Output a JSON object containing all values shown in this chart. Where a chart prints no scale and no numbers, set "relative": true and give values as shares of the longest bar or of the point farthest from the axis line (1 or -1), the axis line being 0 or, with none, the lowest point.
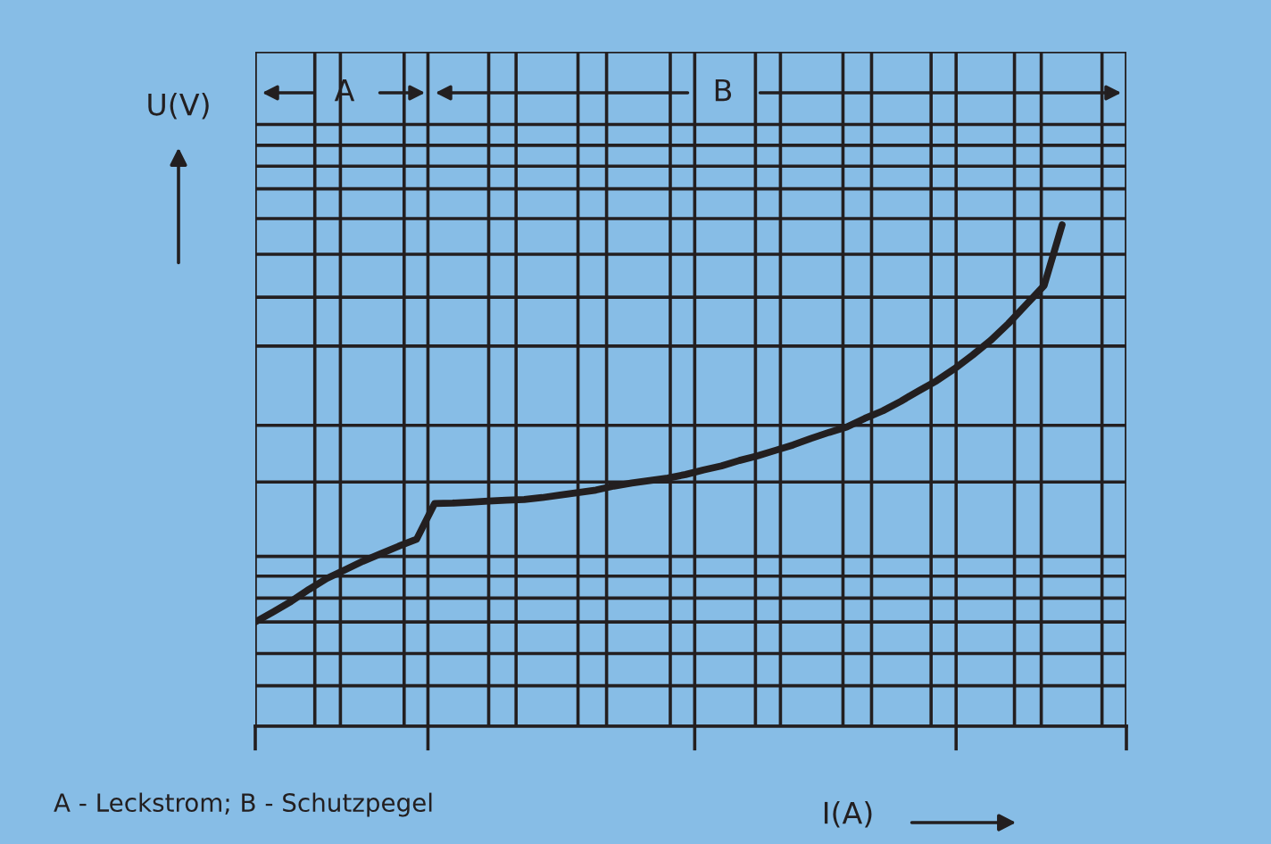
{
  "chart_data": {
    "type": "line",
    "relative": true,
    "xlabel": "I(A)",
    "ylabel": "U(V)",
    "categories": [
      null,
      null,
      null,
      null,
      null,
      null,
      null,
      null,
      null,
      null,
      null,
      null,
      null,
      null,
      null,
      null,
      null,
      null,
      null,
      null,
      null,
      null,
      null,
      null,
      null,
      null,
      null,
      null,
      null,
      null,
      null,
      null,
      null,
      null,
      null,
      null,
      null,
      null,
      null,
      null,
      null,
      null,
      null,
      null,
      null,
      null
    ],
    "series": [
      {
        "color": "#231f20",
        "values": [
          0.208,
          0.228,
          0.249,
          0.273,
          0.295,
          0.312,
          0.329,
          0.344,
          0.359,
          0.373,
          0.444,
          0.445,
          0.447,
          0.449,
          0.451,
          0.452,
          0.456,
          0.461,
          0.466,
          0.471,
          0.479,
          0.485,
          0.49,
          0.495,
          0.502,
          0.511,
          0.519,
          0.53,
          0.539,
          0.55,
          0.561,
          0.574,
          0.586,
          0.597,
          0.614,
          0.629,
          0.648,
          0.669,
          0.689,
          0.713,
          0.74,
          0.769,
          0.803,
          0.841,
          0.879,
          1.0
        ]
      }
    ],
    "annotations": [
      "A",
      "B",
      "A - Leckstrom; B - Schutzpegel"
    ],
    "grid": true,
    "line_style": "solid"
  }
}
